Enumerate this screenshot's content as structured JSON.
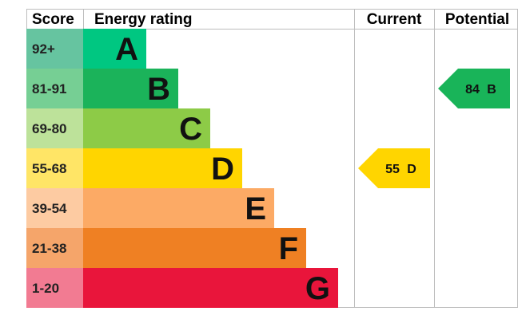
{
  "chart_data": {
    "type": "table",
    "headers": {
      "score": "Score",
      "rating": "Energy rating",
      "current": "Current",
      "potential": "Potential"
    },
    "bands": [
      {
        "score": "92+",
        "letter": "A",
        "color": "#008054",
        "bar_color": "#00c781",
        "score_bg": "#66c4a0"
      },
      {
        "score": "81-91",
        "letter": "B",
        "color": "#19b459",
        "bar_color": "#1bb35a",
        "score_bg": "#76cf94"
      },
      {
        "score": "69-80",
        "letter": "C",
        "color": "#8dce46",
        "bar_color": "#8dcb47",
        "score_bg": "#bde29a"
      },
      {
        "score": "55-68",
        "letter": "D",
        "color": "#ffd500",
        "bar_color": "#ffd500",
        "score_bg": "#ffe566"
      },
      {
        "score": "39-54",
        "letter": "E",
        "color": "#fcaa65",
        "bar_color": "#fcaa65",
        "score_bg": "#fdcba2"
      },
      {
        "score": "21-38",
        "letter": "F",
        "color": "#ef8023",
        "bar_color": "#ef8023",
        "score_bg": "#f5a56a"
      },
      {
        "score": "1-20",
        "letter": "G",
        "color": "#e9153b",
        "bar_color": "#e9153b",
        "score_bg": "#f27b92"
      }
    ],
    "current": {
      "value": 55,
      "letter": "D",
      "color": "#ffd500"
    },
    "potential": {
      "value": 84,
      "letter": "B",
      "color": "#19b459"
    }
  }
}
